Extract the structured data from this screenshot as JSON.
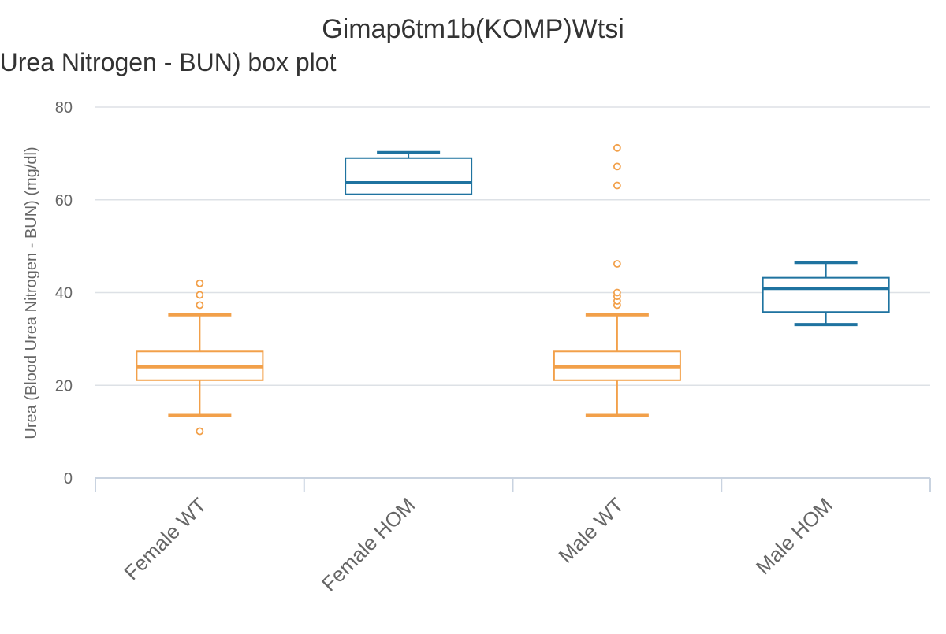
{
  "chart_data": {
    "type": "boxplot",
    "title": "Gimap6tm1b(KOMP)Wtsi",
    "subtitle": "Urea (Blood Urea Nitrogen - BUN) box plot",
    "xlabel": "",
    "ylabel": "Urea (Blood Urea Nitrogen - BUN) (mg/dl)",
    "ylim": [
      0,
      80
    ],
    "yticks": [
      0,
      20,
      40,
      60,
      80
    ],
    "grid": true,
    "categories": [
      "Female WT",
      "Female HOM",
      "Male WT",
      "Male HOM"
    ],
    "boxes": [
      {
        "category": "Female WT",
        "min": 13.5,
        "q1": 21.1,
        "median": 24.0,
        "q3": 27.3,
        "max": 35.2,
        "outliers": [
          10.1,
          37.3,
          39.5,
          42.0
        ],
        "color": "#F2A04A"
      },
      {
        "category": "Female HOM",
        "min": 61.2,
        "q1": 61.2,
        "median": 63.7,
        "q3": 69.0,
        "max": 70.2,
        "outliers": [],
        "color": "#1F73A0"
      },
      {
        "category": "Male WT",
        "min": 13.5,
        "q1": 21.1,
        "median": 24.0,
        "q3": 27.3,
        "max": 35.2,
        "outliers": [
          37.3,
          38.2,
          39.2,
          40.0,
          46.2,
          63.1,
          67.2,
          71.2
        ],
        "color": "#F2A04A"
      },
      {
        "category": "Male HOM",
        "min": 33.1,
        "q1": 35.8,
        "median": 40.9,
        "q3": 43.2,
        "max": 46.5,
        "outliers": [],
        "color": "#1F73A0"
      }
    ]
  },
  "colors": {
    "wt": "#F2A04A",
    "hom": "#1F73A0",
    "grid": "#dde1e6",
    "axis": "#c9d3e0",
    "text": "#666666",
    "title": "#333333"
  }
}
